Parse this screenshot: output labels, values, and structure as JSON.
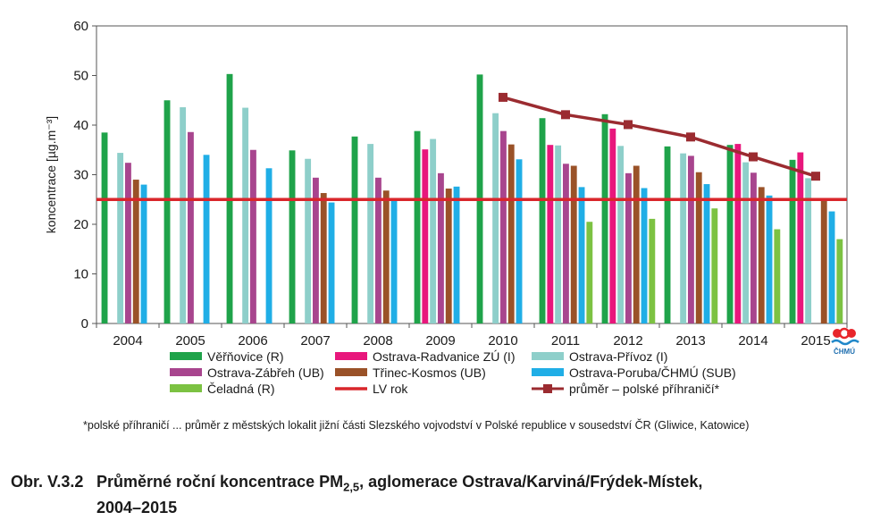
{
  "chart_data": {
    "type": "bar",
    "categories": [
      "2004",
      "2005",
      "2006",
      "2007",
      "2008",
      "2009",
      "2010",
      "2011",
      "2012",
      "2013",
      "2014",
      "2015"
    ],
    "ylabel": "koncentrace [µg.m⁻³]",
    "ylim": [
      0,
      60
    ],
    "yticks": [
      0,
      10,
      20,
      30,
      40,
      50,
      60
    ],
    "grid": false,
    "legend_position": "bottom",
    "series": [
      {
        "name": "Věřňovice (R)",
        "color": "#1fa34a",
        "values": [
          38.5,
          45.0,
          50.3,
          34.9,
          37.7,
          38.8,
          50.2,
          41.4,
          42.2,
          35.7,
          36.0,
          33.0
        ]
      },
      {
        "name": "Ostrava-Radvanice ZÚ (I)",
        "color": "#e8177c",
        "values": [
          null,
          null,
          null,
          null,
          null,
          35.1,
          null,
          36.0,
          39.3,
          null,
          36.2,
          34.5
        ]
      },
      {
        "name": "Ostrava-Přívoz (I)",
        "color": "#8ecfca",
        "values": [
          34.4,
          43.6,
          43.5,
          33.2,
          36.2,
          37.2,
          42.4,
          35.9,
          35.8,
          34.3,
          32.5,
          29.3
        ]
      },
      {
        "name": "Ostrava-Zábřeh (UB)",
        "color": "#a8458e",
        "values": [
          32.4,
          38.6,
          35.0,
          29.4,
          29.4,
          30.3,
          38.8,
          32.2,
          30.3,
          33.8,
          30.4,
          null
        ]
      },
      {
        "name": "Třinec-Kosmos (UB)",
        "color": "#9a5228",
        "values": [
          29.0,
          null,
          null,
          26.3,
          26.8,
          27.2,
          36.1,
          31.8,
          31.8,
          30.5,
          27.5,
          25.1
        ]
      },
      {
        "name": "Ostrava-Poruba/ČHMÚ (SUB)",
        "color": "#20aee6",
        "values": [
          28.0,
          34.0,
          31.3,
          24.4,
          25.3,
          27.6,
          33.1,
          27.5,
          27.3,
          28.1,
          25.8,
          22.6
        ]
      },
      {
        "name": "Čeladná (R)",
        "color": "#7cc242",
        "values": [
          null,
          null,
          null,
          null,
          null,
          null,
          null,
          20.5,
          21.1,
          23.2,
          19.0,
          17.0
        ]
      }
    ],
    "lv": {
      "name": "LV rok",
      "color": "#d9262b",
      "value": 25
    },
    "line_series": {
      "name": "průměr – polské příhraničí*",
      "color": "#9b2b30",
      "x": [
        "2010",
        "2011",
        "2012",
        "2013",
        "2014",
        "2015"
      ],
      "values": [
        45.6,
        42.1,
        40.1,
        37.6,
        33.6,
        29.7
      ]
    }
  },
  "footnote": "*polské příhraničí ... průměr z městských lokalit jižní části Slezského vojvodství v Polské republice v sousedství ČR (Gliwice, Katowice)",
  "caption": {
    "number": "Obr. V.3.2",
    "title_pre": "Průměrné roční koncentrace PM",
    "title_sub": "2,5",
    "title_post": ", aglomerace Ostrava/Karviná/Frýdek-Místek,",
    "title_line2": "2004–2015"
  },
  "logo": {
    "text": "ČHMÚ"
  }
}
